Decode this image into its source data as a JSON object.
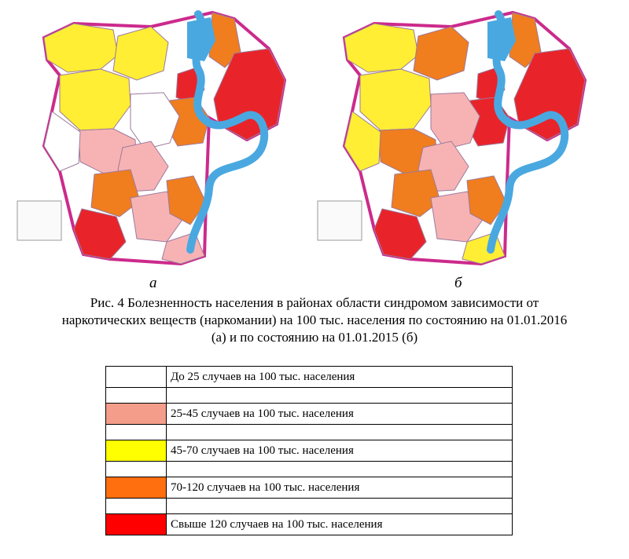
{
  "figure": {
    "map_letters": [
      "а",
      "б"
    ],
    "caption_lines": [
      "Рис. 4 Болезненность населения в районах  области синдромом зависимости от",
      "наркотических веществ (наркомании)  на 100 тыс. населения по состоянию на 01.01.2016",
      "(а) и по состоянию на 01.01.2015 (б)"
    ]
  },
  "colors": {
    "none": "#ffffff",
    "pink": "#f7b3b4",
    "yellow": "#ffee33",
    "orange": "#f07d1e",
    "red": "#e8242a",
    "water": "#4aa8e0",
    "border": "#cc2a8c"
  },
  "legend": [
    {
      "label": "До 25 случаев на 100 тыс. населения",
      "color": "#ffffff"
    },
    {
      "label": "25-45  случаев на 100 тыс. населения",
      "color": "#f49d8b"
    },
    {
      "label": "45-70 случаев на 100 тыс. населения",
      "color": "#ffff00"
    },
    {
      "label": "70-120 случаев на 100 тыс. населения",
      "color": "#ff6f0f"
    },
    {
      "label": "Свыше 120 случаев на 100 тыс. населения",
      "color": "#ff0000"
    }
  ],
  "maps": [
    {
      "id": "a",
      "regions": [
        "yellow",
        "yellow",
        "yellow",
        "orange",
        "red",
        "red",
        "orange",
        "none",
        "pink",
        "pink",
        "orange",
        "pink",
        "red",
        "orange",
        "pink",
        "none"
      ]
    },
    {
      "id": "b",
      "regions": [
        "yellow",
        "orange",
        "yellow",
        "orange",
        "red",
        "red",
        "red",
        "pink",
        "orange",
        "pink",
        "orange",
        "pink",
        "red",
        "orange",
        "yellow",
        "yellow"
      ]
    }
  ]
}
